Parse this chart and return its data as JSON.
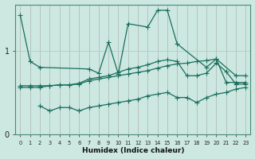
{
  "xlabel": "Humidex (Indice chaleur)",
  "ylabel": "",
  "bg_color": "#cce8e0",
  "line_color": "#1a6e5e",
  "grid_color": "#aaccc4",
  "xlim": [
    -0.5,
    23.5
  ],
  "ylim": [
    0,
    1.55
  ],
  "yticks": [
    0,
    1
  ],
  "xticks": [
    0,
    1,
    2,
    3,
    4,
    5,
    6,
    7,
    8,
    9,
    10,
    11,
    12,
    13,
    14,
    15,
    16,
    17,
    18,
    19,
    20,
    21,
    22,
    23
  ],
  "line1_x": [
    0,
    1,
    2,
    7,
    8,
    9,
    10,
    11,
    13,
    14,
    15,
    16,
    19,
    20,
    22,
    23
  ],
  "line1_y": [
    1.42,
    0.87,
    0.8,
    0.78,
    0.73,
    1.1,
    0.72,
    1.32,
    1.28,
    1.48,
    1.48,
    1.08,
    0.8,
    0.9,
    0.7,
    0.7
  ],
  "line2_x": [
    0,
    1,
    2,
    3,
    4,
    5,
    6,
    7,
    8,
    9,
    10,
    11,
    12,
    13,
    14,
    15,
    16,
    17,
    18,
    19,
    20,
    21,
    22,
    23
  ],
  "line2_y": [
    0.58,
    0.58,
    0.58,
    0.58,
    0.59,
    0.59,
    0.6,
    0.64,
    0.66,
    0.68,
    0.7,
    0.72,
    0.74,
    0.76,
    0.79,
    0.82,
    0.84,
    0.85,
    0.87,
    0.88,
    0.9,
    0.62,
    0.62,
    0.62
  ],
  "line3_x": [
    0,
    1,
    2,
    3,
    4,
    5,
    6,
    7,
    8,
    9,
    10,
    11,
    12,
    13,
    14,
    15,
    16,
    17,
    18,
    19,
    20,
    21,
    22,
    23
  ],
  "line3_y": [
    0.56,
    0.56,
    0.56,
    0.58,
    0.59,
    0.59,
    0.61,
    0.66,
    0.68,
    0.7,
    0.74,
    0.78,
    0.8,
    0.83,
    0.87,
    0.89,
    0.87,
    0.7,
    0.7,
    0.73,
    0.85,
    0.75,
    0.6,
    0.6
  ],
  "line4_x": [
    2,
    3,
    4,
    5,
    6,
    7,
    8,
    9,
    10,
    11,
    12,
    13,
    14,
    15,
    16,
    17,
    18,
    19,
    20,
    21,
    22,
    23
  ],
  "line4_y": [
    0.34,
    0.28,
    0.32,
    0.32,
    0.28,
    0.32,
    0.34,
    0.36,
    0.38,
    0.4,
    0.42,
    0.46,
    0.48,
    0.5,
    0.44,
    0.44,
    0.38,
    0.44,
    0.48,
    0.5,
    0.54,
    0.56
  ]
}
